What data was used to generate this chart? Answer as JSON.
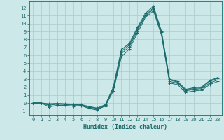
{
  "xlabel": "Humidex (Indice chaleur)",
  "bg_color": "#cce8e8",
  "grid_color": "#aacccc",
  "line_color": "#1a6b6b",
  "xlim": [
    -0.5,
    23.5
  ],
  "ylim": [
    -1.5,
    12.8
  ],
  "xticks": [
    0,
    1,
    2,
    3,
    4,
    5,
    6,
    7,
    8,
    9,
    10,
    11,
    12,
    13,
    14,
    15,
    16,
    17,
    18,
    19,
    20,
    21,
    22,
    23
  ],
  "yticks": [
    -1,
    0,
    1,
    2,
    3,
    4,
    5,
    6,
    7,
    8,
    9,
    10,
    11,
    12
  ],
  "series_main": [
    0,
    0,
    -0.5,
    -0.3,
    -0.3,
    -0.4,
    -0.35,
    -0.7,
    -0.9,
    -0.3,
    2.0,
    6.7,
    7.5,
    9.5,
    11.3,
    12.2,
    9.0,
    3.0,
    2.7,
    1.7,
    1.9,
    2.0,
    2.8,
    3.2
  ],
  "series_extra": [
    [
      0,
      0,
      -0.3,
      -0.15,
      -0.2,
      -0.25,
      -0.3,
      -0.6,
      -0.8,
      -0.4,
      1.5,
      5.8,
      6.8,
      8.8,
      10.8,
      11.6,
      8.5,
      2.5,
      2.3,
      1.3,
      1.5,
      1.6,
      2.3,
      2.7
    ],
    [
      0,
      0,
      -0.2,
      -0.1,
      -0.15,
      -0.2,
      -0.25,
      -0.5,
      -0.7,
      -0.3,
      1.7,
      6.2,
      7.1,
      9.1,
      11.0,
      11.8,
      8.7,
      2.7,
      2.5,
      1.5,
      1.7,
      1.8,
      2.5,
      2.9
    ],
    [
      0,
      0,
      -0.1,
      -0.05,
      -0.1,
      -0.15,
      -0.2,
      -0.45,
      -0.65,
      -0.2,
      1.9,
      6.5,
      7.3,
      9.3,
      11.1,
      12.0,
      8.9,
      2.9,
      2.6,
      1.6,
      1.8,
      1.9,
      2.7,
      3.1
    ]
  ]
}
